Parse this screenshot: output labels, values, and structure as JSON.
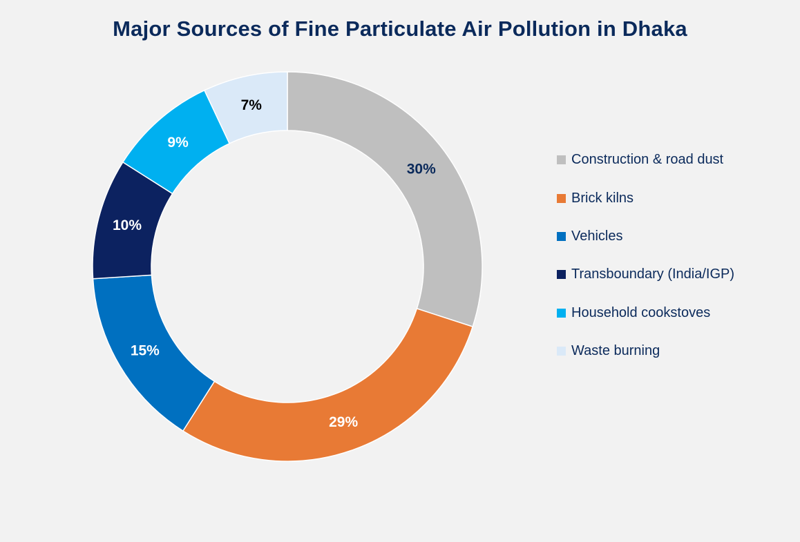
{
  "chart_data": {
    "type": "pie",
    "variant": "donut",
    "title": "Major Sources of Fine Particulate Air Pollution in Dhaka",
    "categories": [
      "Construction & road dust",
      "Brick kilns",
      "Vehicles",
      "Transboundary (India/IGP)",
      "Household cookstoves",
      "Waste burning"
    ],
    "values": [
      30,
      29,
      15,
      10,
      9,
      7
    ],
    "data_labels": [
      "30%",
      "29%",
      "15%",
      "10%",
      "9%",
      "7%"
    ],
    "colors": [
      "#bfbfbf",
      "#e87a35",
      "#0070c0",
      "#0c2260",
      "#00b0f0",
      "#dae9f8"
    ],
    "label_colors": [
      "#0b2a5b",
      "#ffffff",
      "#ffffff",
      "#ffffff",
      "#ffffff",
      "#000000"
    ],
    "legend_position": "right",
    "start_position": "top",
    "direction": "clockwise"
  }
}
